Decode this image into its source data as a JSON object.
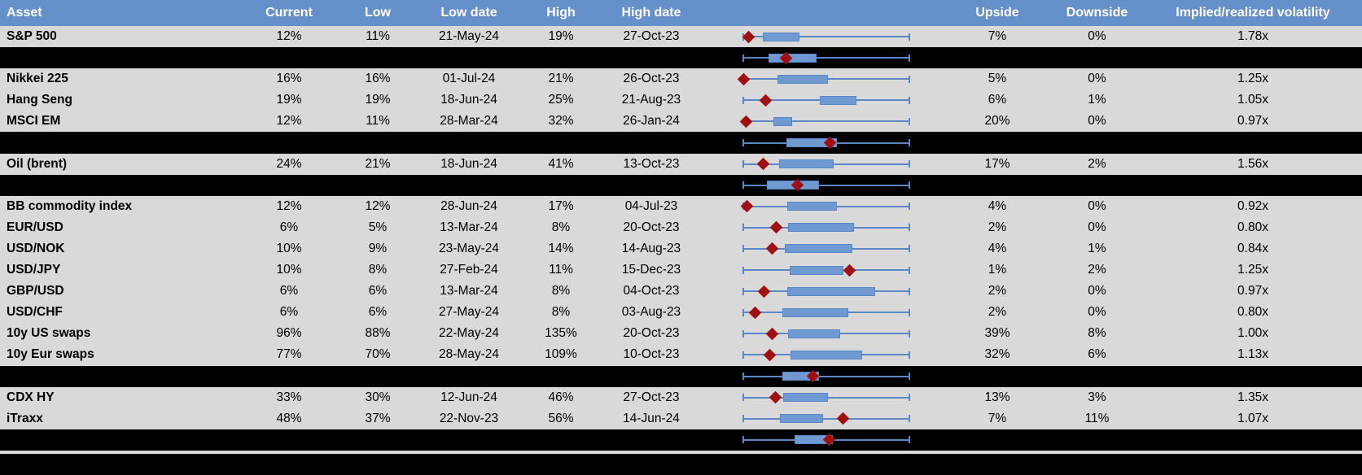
{
  "title": "Implied volatility summary table with 12-month low-high range box plots",
  "colors": {
    "header_bg": "#6590ca",
    "header_text": "#ffffff",
    "row_bg": "#d9d9d9",
    "band_bg": "#000000",
    "text": "#000000",
    "whisker": "#5b87c6",
    "box_fill": "#6e99d1",
    "box_border": "#5b87c6",
    "diamond": "#a01013"
  },
  "chart_data": {
    "type": "table",
    "note_embedded_chart": "Each row contains a horizontal box-whisker plot of the asset volatility range; whisker spans the full low-high range (0-100%), box = interquartile band, red diamond = current level. Positions stored as percent of whisker span. Black rows are unlabeled aggregate box plots.",
    "columns": [
      "Asset",
      "Current",
      "Low",
      "Low date",
      "High",
      "High date",
      "",
      "Upside",
      "Downside",
      "Implied/realized volatility"
    ],
    "rows": [
      {
        "kind": "data",
        "asset": "S&P 500",
        "current": "12%",
        "low": "11%",
        "low_date": "21-May-24",
        "high": "19%",
        "high_date": "27-Oct-23",
        "upside": "7%",
        "downside": "0%",
        "implied_realized": "1.78x",
        "box": {
          "lo": 12,
          "hi": 34,
          "diamond": 3
        }
      },
      {
        "kind": "aggregate",
        "box": {
          "lo": 15,
          "hi": 44,
          "diamond": 25.5
        }
      },
      {
        "kind": "data",
        "asset": "Nikkei 225",
        "current": "16%",
        "low": "16%",
        "low_date": "01-Jul-24",
        "high": "21%",
        "high_date": "26-Oct-23",
        "upside": "5%",
        "downside": "0%",
        "implied_realized": "1.25x",
        "box": {
          "lo": 20.5,
          "hi": 51,
          "diamond": 0
        }
      },
      {
        "kind": "data",
        "asset": "Hang Seng",
        "current": "19%",
        "low": "19%",
        "low_date": "18-Jun-24",
        "high": "25%",
        "high_date": "21-Aug-23",
        "upside": "6%",
        "downside": "1%",
        "implied_realized": "1.05x",
        "box": {
          "lo": 46,
          "hi": 68,
          "diamond": 13.5
        }
      },
      {
        "kind": "data",
        "asset": "MSCI EM",
        "current": "12%",
        "low": "11%",
        "low_date": "28-Mar-24",
        "high": "32%",
        "high_date": "26-Jan-24",
        "upside": "20%",
        "downside": "0%",
        "implied_realized": "0.97x",
        "box": {
          "lo": 18,
          "hi": 29.5,
          "diamond": 1.5
        }
      },
      {
        "kind": "aggregate",
        "box": {
          "lo": 26,
          "hi": 56.5,
          "diamond": 52
        }
      },
      {
        "kind": "data",
        "asset": "Oil (brent)",
        "current": "24%",
        "low": "21%",
        "low_date": "18-Jun-24",
        "high": "41%",
        "high_date": "13-Oct-23",
        "upside": "17%",
        "downside": "2%",
        "implied_realized": "1.56x",
        "box": {
          "lo": 21.5,
          "hi": 54.5,
          "diamond": 12
        }
      },
      {
        "kind": "aggregate",
        "box": {
          "lo": 14,
          "hi": 45.5,
          "diamond": 32.5
        }
      },
      {
        "kind": "data",
        "asset": "BB commodity index",
        "current": "12%",
        "low": "12%",
        "low_date": "28-Jun-24",
        "high": "17%",
        "high_date": "04-Jul-23",
        "upside": "4%",
        "downside": "0%",
        "implied_realized": "0.92x",
        "box": {
          "lo": 26.5,
          "hi": 56.5,
          "diamond": 2
        }
      },
      {
        "kind": "data",
        "asset": "EUR/USD",
        "current": "6%",
        "low": "5%",
        "low_date": "13-Mar-24",
        "high": "8%",
        "high_date": "20-Oct-23",
        "upside": "2%",
        "downside": "0%",
        "implied_realized": "0.80x",
        "box": {
          "lo": 27,
          "hi": 66.5,
          "diamond": 20
        }
      },
      {
        "kind": "data",
        "asset": "USD/NOK",
        "current": "10%",
        "low": "9%",
        "low_date": "23-May-24",
        "high": "14%",
        "high_date": "14-Aug-23",
        "upside": "4%",
        "downside": "1%",
        "implied_realized": "0.84x",
        "box": {
          "lo": 25,
          "hi": 65.5,
          "diamond": 17.5
        }
      },
      {
        "kind": "data",
        "asset": "USD/JPY",
        "current": "10%",
        "low": "8%",
        "low_date": "27-Feb-24",
        "high": "11%",
        "high_date": "15-Dec-23",
        "upside": "1%",
        "downside": "2%",
        "implied_realized": "1.25x",
        "box": {
          "lo": 28,
          "hi": 60.5,
          "diamond": 64
        }
      },
      {
        "kind": "data",
        "asset": "GBP/USD",
        "current": "6%",
        "low": "6%",
        "low_date": "13-Mar-24",
        "high": "8%",
        "high_date": "04-Oct-23",
        "upside": "2%",
        "downside": "0%",
        "implied_realized": "0.97x",
        "box": {
          "lo": 26.5,
          "hi": 79.5,
          "diamond": 12.5
        }
      },
      {
        "kind": "data",
        "asset": "USD/CHF",
        "current": "6%",
        "low": "6%",
        "low_date": "27-May-24",
        "high": "8%",
        "high_date": "03-Aug-23",
        "upside": "2%",
        "downside": "0%",
        "implied_realized": "0.80x",
        "box": {
          "lo": 23.5,
          "hi": 63,
          "diamond": 7
        }
      },
      {
        "kind": "data",
        "asset": "10y US swaps",
        "current": "96%",
        "low": "88%",
        "low_date": "22-May-24",
        "high": "135%",
        "high_date": "20-Oct-23",
        "upside": "39%",
        "downside": "8%",
        "implied_realized": "1.00x",
        "box": {
          "lo": 27,
          "hi": 58.5,
          "diamond": 17.5
        }
      },
      {
        "kind": "data",
        "asset": "10y Eur swaps",
        "current": "77%",
        "low": "70%",
        "low_date": "28-May-24",
        "high": "109%",
        "high_date": "10-Oct-23",
        "upside": "32%",
        "downside": "6%",
        "implied_realized": "1.13x",
        "box": {
          "lo": 28.5,
          "hi": 71.5,
          "diamond": 16
        }
      },
      {
        "kind": "aggregate",
        "box": {
          "lo": 23.5,
          "hi": 45.5,
          "diamond": 42
        }
      },
      {
        "kind": "data",
        "asset": "CDX HY",
        "current": "33%",
        "low": "30%",
        "low_date": "12-Jun-24",
        "high": "46%",
        "high_date": "27-Oct-23",
        "upside": "13%",
        "downside": "3%",
        "implied_realized": "1.35x",
        "box": {
          "lo": 24,
          "hi": 51,
          "diamond": 19.5
        }
      },
      {
        "kind": "data",
        "asset": "iTraxx",
        "current": "48%",
        "low": "37%",
        "low_date": "22-Nov-23",
        "high": "56%",
        "high_date": "14-Jun-24",
        "upside": "7%",
        "downside": "11%",
        "implied_realized": "1.07x",
        "box": {
          "lo": 22,
          "hi": 48,
          "diamond": 60
        }
      },
      {
        "kind": "aggregate",
        "box": {
          "lo": 31,
          "hi": 54,
          "diamond": 51.5
        }
      },
      {
        "kind": "spacer"
      },
      {
        "kind": "filler"
      }
    ]
  }
}
